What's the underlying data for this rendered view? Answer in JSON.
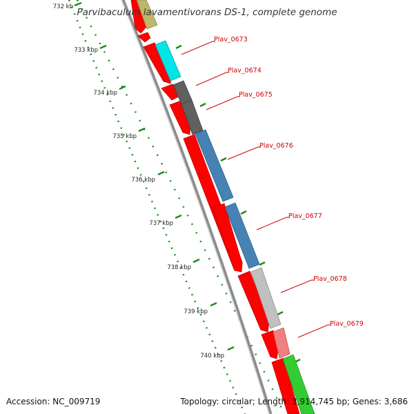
{
  "title": "Parvibaculum lavamentivorans DS-1, complete genome",
  "footer": {
    "accession": "Accession: NC_009719",
    "summary": "Topology: circular; Length: 3,914,745 bp; Genes: 3,686"
  },
  "ruler": {
    "ticks": [
      {
        "label": "732 kb"
      },
      {
        "label": "733 kbp"
      },
      {
        "label": "734 kbp"
      },
      {
        "label": "735 kbp"
      },
      {
        "label": "736 kbp"
      },
      {
        "label": "737 kbp"
      },
      {
        "label": "738 kbp"
      },
      {
        "label": "739 kbp"
      },
      {
        "label": "740 kbp"
      }
    ]
  },
  "genes": [
    {
      "name": "Plav_0673",
      "color": "#00e5e5"
    },
    {
      "name": "Plav_0674",
      "color": "#606060"
    },
    {
      "name": "Plav_0675",
      "color": "#606060"
    },
    {
      "name": "Plav_0676",
      "color": "#4682b4"
    },
    {
      "name": "Plav_0677",
      "color": "#4682b4"
    },
    {
      "name": "Plav_0678",
      "color": "#c0c0c0"
    },
    {
      "name": "Plav_0679",
      "color": "#f08080"
    }
  ],
  "colors": {
    "cds_strand": "#ff0000",
    "tick": "#1a8c1a",
    "backbone": "#8c8c8c",
    "label": "#cc0000",
    "top_feature": "#bdb76b",
    "bottom_feature": "#32cd32"
  }
}
